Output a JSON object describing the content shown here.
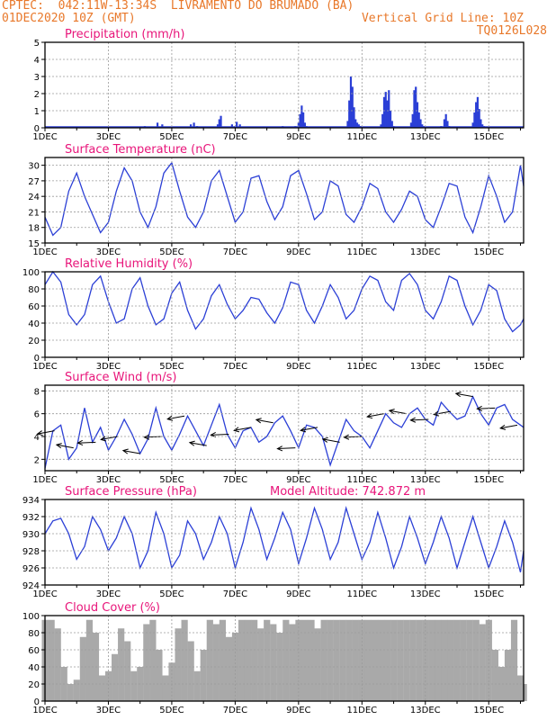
{
  "header": {
    "line1_left": "CPTEC:  042:11W-13:34S  LIVRAMENTO DO BRUMADO (BA)",
    "line2_left": "01DEC2020 10Z (GMT)",
    "line2_right": "Vertical Grid Line: 10Z",
    "line3_right": "TQ0126L028"
  },
  "colors": {
    "header": "#e8782a",
    "title": "#e8157a",
    "series": "#2b3fd6",
    "arrows": "#000000",
    "cloud": "#a9a9a9",
    "grid": "#9a9a9a"
  },
  "x_axis": {
    "tick_labels": [
      "1DEC",
      "3DEC",
      "5DEC",
      "7DEC",
      "9DEC",
      "11DEC",
      "13DEC",
      "15DEC"
    ],
    "tick_days": [
      0,
      2,
      4,
      6,
      8,
      10,
      12,
      14
    ],
    "range_days": [
      0,
      15.1
    ]
  },
  "chart_data": [
    {
      "type": "bar",
      "title": "Precipitation (mm/h)",
      "ylim": [
        0,
        5
      ],
      "yticks": [
        0,
        1,
        2,
        3,
        4,
        5
      ],
      "x_days": [
        0.2,
        0.5,
        1.1,
        1.7,
        2.6,
        3.15,
        3.55,
        3.7,
        4.15,
        4.6,
        4.7,
        4.8,
        5.45,
        5.5,
        5.55,
        5.9,
        6.0,
        6.05,
        6.15,
        6.4,
        6.9,
        7.5,
        7.9,
        8.0,
        8.05,
        8.1,
        8.15,
        8.2,
        8.25,
        9.55,
        9.6,
        9.65,
        9.7,
        9.75,
        9.8,
        9.85,
        9.9,
        9.95,
        10.0,
        10.6,
        10.65,
        10.7,
        10.75,
        10.8,
        10.85,
        10.9,
        10.95,
        11.0,
        11.55,
        11.6,
        11.65,
        11.7,
        11.75,
        11.8,
        11.85,
        11.9,
        11.95,
        12.0,
        12.5,
        12.6,
        12.65,
        12.7,
        12.75,
        13.5,
        13.55,
        13.6,
        13.65,
        13.7,
        13.75,
        13.8,
        13.85,
        14.5,
        14.8
      ],
      "values": [
        0.03,
        0.05,
        0.05,
        0.05,
        0.08,
        0.1,
        0.3,
        0.2,
        0.08,
        0.2,
        0.3,
        0.1,
        0.2,
        0.5,
        0.7,
        0.2,
        0.1,
        0.35,
        0.2,
        0.08,
        0.08,
        0.1,
        0.1,
        0.3,
        0.8,
        1.3,
        0.9,
        0.3,
        0.1,
        0.4,
        1.6,
        3.0,
        2.4,
        1.2,
        0.5,
        0.3,
        0.2,
        0.1,
        0.05,
        0.2,
        0.8,
        1.8,
        2.1,
        1.6,
        2.2,
        1.0,
        0.4,
        0.1,
        0.3,
        0.8,
        2.2,
        2.4,
        1.5,
        0.9,
        0.5,
        0.2,
        0.1,
        0.05,
        0.1,
        0.5,
        0.8,
        0.4,
        0.1,
        0.3,
        0.9,
        1.5,
        1.8,
        1.1,
        0.5,
        0.2,
        0.1,
        0.05,
        0.05
      ]
    },
    {
      "type": "line",
      "title": "Surface Temperature (nC)",
      "ylim": [
        15,
        31.5
      ],
      "yticks": [
        15,
        18,
        21,
        24,
        27,
        30
      ],
      "x_days": [
        0,
        0.25,
        0.5,
        0.75,
        1.0,
        1.25,
        1.5,
        1.75,
        2.0,
        2.25,
        2.5,
        2.75,
        3.0,
        3.25,
        3.5,
        3.75,
        4.0,
        4.25,
        4.5,
        4.75,
        5.0,
        5.25,
        5.5,
        5.75,
        6.0,
        6.25,
        6.5,
        6.75,
        7.0,
        7.25,
        7.5,
        7.75,
        8.0,
        8.25,
        8.5,
        8.75,
        9.0,
        9.25,
        9.5,
        9.75,
        10.0,
        10.25,
        10.5,
        10.75,
        11.0,
        11.25,
        11.5,
        11.75,
        12.0,
        12.25,
        12.5,
        12.75,
        13.0,
        13.25,
        13.5,
        13.75,
        14.0,
        14.25,
        14.5,
        14.75,
        15.0,
        15.1
      ],
      "values": [
        20,
        16.5,
        18,
        25,
        28.5,
        24,
        20.5,
        17,
        19,
        25,
        29.5,
        27,
        21,
        18,
        22,
        28.5,
        30.5,
        25,
        20,
        18,
        21,
        27,
        29,
        24,
        19,
        21,
        27.5,
        28,
        23,
        19.5,
        22,
        28,
        29,
        24.5,
        19.5,
        21,
        27,
        26,
        20.5,
        19,
        22,
        26.5,
        25.5,
        21,
        19,
        21.5,
        25,
        24,
        19.5,
        18,
        22,
        26.5,
        26,
        20,
        17,
        22,
        28,
        24,
        19,
        21,
        30,
        26
      ]
    },
    {
      "type": "line",
      "title": "Relative Humidity (%)",
      "ylim": [
        0,
        100
      ],
      "yticks": [
        0,
        20,
        40,
        60,
        80,
        100
      ],
      "x_days": [
        0,
        0.25,
        0.5,
        0.75,
        1.0,
        1.25,
        1.5,
        1.75,
        2.0,
        2.25,
        2.5,
        2.75,
        3.0,
        3.25,
        3.5,
        3.75,
        4.0,
        4.25,
        4.5,
        4.75,
        5.0,
        5.25,
        5.5,
        5.75,
        6.0,
        6.25,
        6.5,
        6.75,
        7.0,
        7.25,
        7.5,
        7.75,
        8.0,
        8.25,
        8.5,
        8.75,
        9.0,
        9.25,
        9.5,
        9.75,
        10.0,
        10.25,
        10.5,
        10.75,
        11.0,
        11.25,
        11.5,
        11.75,
        12.0,
        12.25,
        12.5,
        12.75,
        13.0,
        13.25,
        13.5,
        13.75,
        14.0,
        14.25,
        14.5,
        14.75,
        15.0,
        15.1
      ],
      "values": [
        85,
        100,
        88,
        50,
        38,
        50,
        85,
        95,
        65,
        40,
        45,
        80,
        93,
        60,
        38,
        45,
        75,
        88,
        55,
        33,
        45,
        72,
        85,
        62,
        45,
        55,
        70,
        68,
        52,
        40,
        58,
        88,
        85,
        55,
        40,
        60,
        85,
        70,
        45,
        55,
        80,
        95,
        90,
        65,
        55,
        90,
        98,
        85,
        55,
        45,
        65,
        95,
        90,
        60,
        38,
        55,
        85,
        78,
        45,
        30,
        38,
        45
      ]
    },
    {
      "type": "line",
      "title": "Surface Wind (m/s)",
      "ylim": [
        1,
        8.5
      ],
      "yticks": [
        2,
        4,
        6,
        8
      ],
      "x_days": [
        0,
        0.25,
        0.5,
        0.75,
        1.0,
        1.25,
        1.5,
        1.75,
        2.0,
        2.25,
        2.5,
        2.75,
        3.0,
        3.25,
        3.5,
        3.75,
        4.0,
        4.25,
        4.5,
        4.75,
        5.0,
        5.25,
        5.5,
        5.75,
        6.0,
        6.25,
        6.5,
        6.75,
        7.0,
        7.25,
        7.5,
        7.75,
        8.0,
        8.25,
        8.5,
        8.75,
        9.0,
        9.25,
        9.5,
        9.75,
        10.0,
        10.25,
        10.5,
        10.75,
        11.0,
        11.25,
        11.5,
        11.75,
        12.0,
        12.25,
        12.5,
        12.75,
        13.0,
        13.25,
        13.5,
        13.75,
        14.0,
        14.25,
        14.5,
        14.75,
        15.0,
        15.1
      ],
      "values": [
        1.2,
        4.5,
        5.0,
        2.0,
        3.0,
        6.5,
        3.5,
        4.8,
        2.8,
        4.0,
        5.5,
        4.2,
        2.5,
        3.8,
        6.5,
        4.0,
        2.8,
        4.2,
        5.8,
        4.5,
        3.2,
        5.0,
        6.8,
        4.2,
        3.0,
        4.5,
        4.8,
        3.5,
        4.0,
        5.2,
        5.8,
        4.5,
        3.0,
        5.0,
        4.8,
        4.0,
        1.5,
        3.5,
        5.5,
        4.5,
        4.0,
        3.0,
        4.5,
        6.0,
        5.2,
        4.8,
        6.0,
        6.5,
        5.5,
        5.0,
        7.0,
        6.2,
        5.5,
        5.8,
        7.5,
        6.0,
        5.0,
        6.5,
        6.8,
        5.5,
        5.0,
        4.8
      ],
      "arrows_label": "wind direction vectors"
    },
    {
      "type": "line",
      "title": "Surface Pressure (hPa)",
      "annotation": "Model Altitude: 742.872  m",
      "ylim": [
        924,
        934
      ],
      "yticks": [
        924,
        926,
        928,
        930,
        932,
        934
      ],
      "x_days": [
        0,
        0.25,
        0.5,
        0.75,
        1.0,
        1.25,
        1.5,
        1.75,
        2.0,
        2.25,
        2.5,
        2.75,
        3.0,
        3.25,
        3.5,
        3.75,
        4.0,
        4.25,
        4.5,
        4.75,
        5.0,
        5.25,
        5.5,
        5.75,
        6.0,
        6.25,
        6.5,
        6.75,
        7.0,
        7.25,
        7.5,
        7.75,
        8.0,
        8.25,
        8.5,
        8.75,
        9.0,
        9.25,
        9.5,
        9.75,
        10.0,
        10.25,
        10.5,
        10.75,
        11.0,
        11.25,
        11.5,
        11.75,
        12.0,
        12.25,
        12.5,
        12.75,
        13.0,
        13.25,
        13.5,
        13.75,
        14.0,
        14.25,
        14.5,
        14.75,
        15.0,
        15.1
      ],
      "values": [
        930,
        931.5,
        931.8,
        930,
        927,
        928.5,
        932,
        930.5,
        928,
        929.5,
        932,
        930,
        926,
        928,
        932.5,
        930,
        926,
        927.5,
        931.5,
        930,
        927,
        929,
        932,
        930,
        926,
        929,
        933,
        930.5,
        927,
        929.5,
        932.5,
        930.5,
        926.5,
        929.5,
        933,
        930.5,
        927,
        929,
        933,
        930,
        927,
        929,
        932.5,
        929.5,
        926,
        928.5,
        932,
        929.5,
        926.5,
        929,
        932,
        929.5,
        926,
        929,
        932,
        929,
        926,
        928.5,
        931.5,
        929,
        925.5,
        928
      ]
    },
    {
      "type": "area",
      "title": "Cloud Cover (%)",
      "ylim": [
        0,
        100
      ],
      "yticks": [
        0,
        20,
        40,
        60,
        80,
        100
      ],
      "x_days": [
        0,
        0.2,
        0.4,
        0.6,
        0.8,
        1.0,
        1.2,
        1.4,
        1.6,
        1.8,
        2.0,
        2.2,
        2.4,
        2.6,
        2.8,
        3.0,
        3.2,
        3.4,
        3.6,
        3.8,
        4.0,
        4.2,
        4.4,
        4.6,
        4.8,
        5.0,
        5.2,
        5.4,
        5.6,
        5.8,
        6.0,
        6.2,
        6.4,
        6.6,
        6.8,
        7.0,
        7.2,
        7.4,
        7.6,
        7.8,
        8.0,
        8.2,
        8.4,
        8.6,
        8.8,
        9.0,
        9.2,
        9.4,
        9.6,
        9.8,
        10.0,
        10.2,
        10.4,
        10.6,
        10.8,
        11.0,
        11.2,
        11.4,
        11.6,
        11.8,
        12.0,
        12.2,
        12.4,
        12.6,
        12.8,
        13.0,
        13.2,
        13.4,
        13.6,
        13.8,
        14.0,
        14.2,
        14.4,
        14.6,
        14.8,
        15.0,
        15.1
      ],
      "values": [
        95,
        95,
        85,
        40,
        20,
        25,
        75,
        95,
        80,
        30,
        35,
        55,
        85,
        70,
        35,
        40,
        90,
        95,
        60,
        30,
        45,
        85,
        95,
        70,
        35,
        60,
        95,
        90,
        95,
        75,
        80,
        95,
        95,
        95,
        85,
        95,
        90,
        80,
        95,
        90,
        95,
        95,
        95,
        85,
        95,
        95,
        95,
        95,
        95,
        95,
        95,
        95,
        95,
        95,
        95,
        95,
        95,
        95,
        95,
        95,
        95,
        95,
        95,
        95,
        95,
        95,
        95,
        95,
        95,
        90,
        95,
        60,
        40,
        60,
        95,
        30,
        20
      ]
    }
  ]
}
